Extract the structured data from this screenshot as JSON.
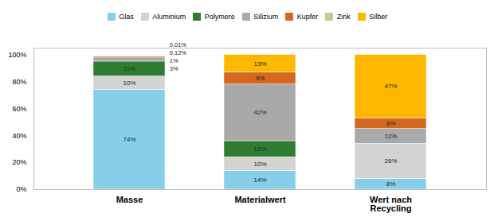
{
  "chart_data": {
    "type": "bar",
    "stacked": true,
    "data_labels": true,
    "categories": [
      "Masse",
      "Materialwert",
      "Wert nach\nRecycling"
    ],
    "series": [
      {
        "name": "Glas",
        "color": "#87CEEB",
        "values": [
          74,
          14,
          8
        ],
        "value_labels": [
          "74%",
          "14%",
          "8%"
        ]
      },
      {
        "name": "Aluminium",
        "color": "#D3D3D3",
        "values": [
          10,
          10,
          26
        ],
        "value_labels": [
          "10%",
          "10%",
          "26%"
        ]
      },
      {
        "name": "Polymere",
        "color": "#2E7D32",
        "values": [
          11,
          12,
          0
        ],
        "value_labels": [
          "11%",
          "12%",
          null
        ]
      },
      {
        "name": "Silizium",
        "color": "#A9A9A9",
        "values": [
          3,
          42,
          11
        ],
        "value_labels": [
          "3%",
          "42%",
          "11%"
        ]
      },
      {
        "name": "Kupfer",
        "color": "#D2691E",
        "values": [
          1,
          9,
          8
        ],
        "value_labels": [
          "1%",
          "9%",
          "8%"
        ]
      },
      {
        "name": "Zink",
        "color": "#C8C890",
        "values": [
          0.12,
          0,
          0
        ],
        "value_labels": [
          "0.12%",
          null,
          null
        ]
      },
      {
        "name": "Silber",
        "color": "#FFB800",
        "values": [
          0.01,
          13,
          47
        ],
        "value_labels": [
          "0.01%",
          "13%",
          "47%"
        ]
      }
    ],
    "ylim": [
      0,
      105
    ],
    "yticks": [
      {
        "value": 0,
        "label": "0%"
      },
      {
        "value": 20,
        "label": "20%"
      },
      {
        "value": 40,
        "label": "40%"
      },
      {
        "value": 60,
        "label": "60%"
      },
      {
        "value": 80,
        "label": "80%"
      },
      {
        "value": 100,
        "label": "100%"
      }
    ],
    "grid": false,
    "legend": "top"
  }
}
